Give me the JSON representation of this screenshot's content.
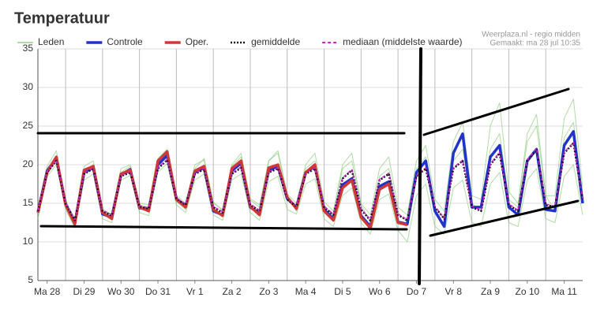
{
  "chart_data": {
    "type": "line",
    "title": "Temperatuur",
    "source": "Weerplaza.nl - regio midden",
    "created": "Gemaakt: ma 28 jul 10:35",
    "x": [
      6,
      12,
      18,
      24,
      30,
      36,
      42,
      48,
      54,
      60,
      66,
      72,
      78,
      84,
      90,
      96,
      102,
      108,
      114,
      120,
      126,
      132,
      138,
      144,
      150,
      156,
      162,
      168,
      174,
      180,
      186,
      192,
      198,
      204,
      210,
      216,
      222,
      228,
      234,
      240,
      246,
      252,
      258,
      264,
      270,
      276,
      282,
      288,
      294,
      300,
      306,
      312,
      318,
      324,
      330,
      336,
      342,
      348,
      354,
      360
    ],
    "xlim": [
      6,
      360
    ],
    "xticks": [
      {
        "value": 12,
        "label": "Ma 28"
      },
      {
        "value": 36,
        "label": "Di 29"
      },
      {
        "value": 60,
        "label": "Wo 30"
      },
      {
        "value": 84,
        "label": "Do 31"
      },
      {
        "value": 108,
        "label": "Vr 1"
      },
      {
        "value": 132,
        "label": "Za 2"
      },
      {
        "value": 156,
        "label": "Zo 3"
      },
      {
        "value": 180,
        "label": "Ma 4"
      },
      {
        "value": 204,
        "label": "Di 5"
      },
      {
        "value": 228,
        "label": "Wo 6"
      },
      {
        "value": 252,
        "label": "Do 7"
      },
      {
        "value": 276,
        "label": "Vr 8"
      },
      {
        "value": 300,
        "label": "Za 9"
      },
      {
        "value": 324,
        "label": "Zo 10"
      },
      {
        "value": 348,
        "label": "Ma 11"
      }
    ],
    "x_grid_lines": [
      24,
      48,
      72,
      96,
      120,
      144,
      168,
      192,
      216,
      240,
      264,
      288,
      312,
      336
    ],
    "ylim": [
      5,
      35
    ],
    "yticks": [
      5,
      10,
      15,
      20,
      25,
      30,
      35
    ],
    "grid": true,
    "series": [
      {
        "name": "Leden",
        "color": "#7dc36a",
        "style": "thin",
        "values": [
          14.5,
          19.8,
          21.8,
          15.2,
          13,
          19.8,
          20.5,
          14.2,
          13.6,
          19.5,
          20,
          15,
          14.8,
          20.8,
          22,
          16,
          15,
          20,
          20.6,
          15,
          14.2,
          20,
          21.5,
          15.4,
          14.5,
          20.5,
          21.8,
          16.2,
          15,
          20,
          21.5,
          15.2,
          14,
          20,
          21.5,
          15,
          13.5,
          19.5,
          21,
          14.5,
          13.5,
          20.5,
          22.5,
          15.5,
          14,
          23,
          25.5,
          16,
          15.5,
          25,
          28,
          16.5,
          15,
          24,
          26.5,
          16,
          16,
          26,
          28.5,
          17
        ]
      },
      {
        "name": "Leden",
        "color": "#7dc36a",
        "style": "thin",
        "values": [
          13,
          18.5,
          20,
          14.2,
          11.8,
          18,
          18.8,
          13,
          12.5,
          18,
          18.6,
          13.8,
          13.4,
          19,
          20.2,
          14.8,
          13.8,
          18,
          18.8,
          13.5,
          12.8,
          18,
          18.8,
          13.8,
          12.8,
          17.8,
          18.5,
          14.2,
          13.6,
          17.5,
          18.2,
          13,
          12,
          16,
          17,
          12.5,
          11,
          15.5,
          16.2,
          11.5,
          10,
          16,
          17.5,
          12,
          11,
          17,
          18,
          12.5,
          12,
          17.5,
          19,
          12.5,
          12,
          18,
          19.5,
          13,
          12.5,
          18.5,
          20,
          13.5
        ]
      },
      {
        "name": "Leden",
        "color": "#7dc36a",
        "style": "thin",
        "values": [
          14.2,
          19.5,
          21.2,
          15.5,
          12.6,
          19.2,
          20,
          14,
          13.5,
          19,
          19.8,
          14.8,
          14.5,
          20,
          21,
          15.2,
          14.2,
          19.5,
          20.8,
          15.2,
          14,
          19.8,
          21,
          15.6,
          14.8,
          20.5,
          21.5,
          16,
          14,
          19.5,
          20.5,
          14.8,
          13.2,
          19.5,
          20.5,
          14.8,
          12.5,
          18.5,
          19.5,
          13.8,
          12.5,
          19.5,
          21,
          14.5,
          13,
          20.5,
          22,
          15,
          14,
          22,
          24,
          15.5,
          14.5,
          23,
          25,
          16,
          14,
          23.5,
          25.5,
          15.5
        ]
      },
      {
        "name": "Controle",
        "color": "#2233cc",
        "style": "thick",
        "values": [
          13.8,
          19.2,
          20.8,
          14.9,
          12.4,
          19,
          19.6,
          13.6,
          13.2,
          18.7,
          19.4,
          14.4,
          14.2,
          20,
          21.2,
          15.6,
          14.6,
          19,
          19.6,
          14,
          13.5,
          19.2,
          20.2,
          14.5,
          13.7,
          19.3,
          19.8,
          15.6,
          14.5,
          19,
          19.8,
          14.2,
          13,
          17.4,
          18.2,
          13.4,
          12,
          17.2,
          17.8,
          12.6,
          12.3,
          19,
          20.5,
          14,
          12,
          21.5,
          24,
          14.5,
          14.5,
          21,
          22.5,
          14.5,
          13.5,
          20.5,
          22,
          14.2,
          14,
          22.5,
          24.3,
          15
        ]
      },
      {
        "name": "Oper.",
        "color": "#d03838",
        "style": "thick",
        "values": [
          13.8,
          19,
          21,
          14.8,
          12.3,
          19.3,
          19.8,
          13.8,
          13,
          18.8,
          19.3,
          14.5,
          14,
          20.5,
          21.7,
          15.5,
          14.5,
          19.2,
          19.8,
          14.2,
          13.4,
          19.5,
          20.5,
          14.6,
          13.5,
          19.6,
          20,
          15.8,
          14.3,
          19,
          20,
          14,
          12.8,
          17,
          18,
          13.2,
          11.8,
          16.8,
          17.5,
          12.5,
          12.2,
          null,
          null,
          null,
          null,
          null,
          null,
          null,
          null,
          null,
          null,
          null,
          null,
          null,
          null,
          null,
          null,
          null,
          null,
          null
        ]
      },
      {
        "name": "gemiddelde",
        "color": "#111111",
        "style": "dotted",
        "values": [
          14,
          19,
          20.5,
          15,
          12.8,
          18.8,
          19.5,
          14,
          13.4,
          18.5,
          19,
          14.6,
          14.3,
          19.5,
          20.6,
          15.6,
          14.8,
          18.8,
          19.4,
          14.5,
          13.8,
          18.8,
          19.6,
          14.8,
          14,
          19,
          19.5,
          15.5,
          14.6,
          18.8,
          19.5,
          14.5,
          13.5,
          18.2,
          19.3,
          14.2,
          12.8,
          18,
          18.8,
          13.5,
          12.8,
          18.5,
          19.5,
          14.5,
          13,
          19.5,
          20.5,
          14.5,
          14,
          20,
          21.5,
          14.8,
          14,
          20.5,
          22,
          14.8,
          14.5,
          21.5,
          22.8,
          15.5
        ]
      },
      {
        "name": "mediaan (middelste waarde)",
        "color": "#cc22cc",
        "style": "dashed",
        "values": [
          14.1,
          19.1,
          20.6,
          15.1,
          12.9,
          18.9,
          19.6,
          14.1,
          13.5,
          18.6,
          19.1,
          14.7,
          14.4,
          19.6,
          20.7,
          15.7,
          14.9,
          18.9,
          19.5,
          14.6,
          13.9,
          18.9,
          19.7,
          14.9,
          14.1,
          19.1,
          19.6,
          15.6,
          14.7,
          18.9,
          19.6,
          14.6,
          13.6,
          18.3,
          19.4,
          14.3,
          12.9,
          18.1,
          18.9,
          13.6,
          12.9,
          18.6,
          19.6,
          14.6,
          13.1,
          19.6,
          20.6,
          14.6,
          14.1,
          20.1,
          21.6,
          14.9,
          14.1,
          20.6,
          22.1,
          14.9,
          14.6,
          21.6,
          22.9,
          15.6
        ]
      }
    ]
  }
}
